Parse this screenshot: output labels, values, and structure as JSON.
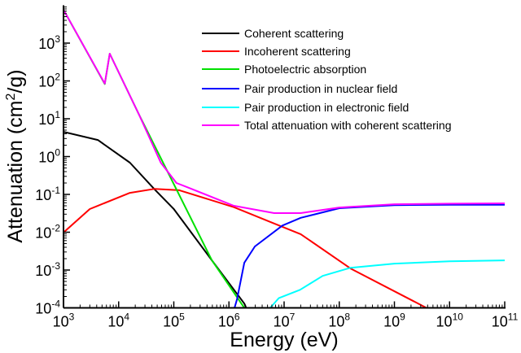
{
  "chart_data": {
    "type": "line",
    "title": "",
    "xlabel": "Energy (eV)",
    "ylabel": "Attenuation (cm2/g)",
    "ylabel_parts": {
      "pre": "Attenuation (cm",
      "sup": "2",
      "post": "/g)"
    },
    "x_scale": "log",
    "y_scale": "log",
    "xlim": [
      1000.0,
      100000000000.0
    ],
    "ylim": [
      0.0001,
      10000.0
    ],
    "x_ticks": [
      {
        "base": "10",
        "exp": "3",
        "value": 1000.0
      },
      {
        "base": "10",
        "exp": "4",
        "value": 10000.0
      },
      {
        "base": "10",
        "exp": "5",
        "value": 100000.0
      },
      {
        "base": "10",
        "exp": "6",
        "value": 1000000.0
      },
      {
        "base": "10",
        "exp": "7",
        "value": 10000000.0
      },
      {
        "base": "10",
        "exp": "8",
        "value": 100000000.0
      },
      {
        "base": "10",
        "exp": "9",
        "value": 1000000000.0
      },
      {
        "base": "10",
        "exp": "10",
        "value": 10000000000.0
      },
      {
        "base": "10",
        "exp": "11",
        "value": 100000000000.0
      }
    ],
    "y_ticks": [
      {
        "base": "10",
        "exp": "-4",
        "value": 0.0001
      },
      {
        "base": "10",
        "exp": "-3",
        "value": 0.001
      },
      {
        "base": "10",
        "exp": "-2",
        "value": 0.01
      },
      {
        "base": "10",
        "exp": "-1",
        "value": 0.1
      },
      {
        "base": "10",
        "exp": "0",
        "value": 1
      },
      {
        "base": "10",
        "exp": "1",
        "value": 10
      },
      {
        "base": "10",
        "exp": "2",
        "value": 100
      },
      {
        "base": "10",
        "exp": "3",
        "value": 1000
      }
    ],
    "grid": false,
    "legend_placement": "top-right",
    "series": [
      {
        "name": "Coherent scattering",
        "color": "#000000",
        "x": [
          1000.0,
          4200.0,
          16000.0,
          45000.0,
          100000.0,
          490000.0,
          1900000.0,
          2050000.0
        ],
        "y": [
          4.5,
          2.75,
          0.69,
          0.135,
          0.041,
          0.0018,
          0.00013,
          0.0001
        ]
      },
      {
        "name": "Incoherent scattering",
        "color": "#ff0000",
        "x": [
          1000.0,
          3000.0,
          16000.0,
          45000.0,
          126000.0,
          1230000.0,
          6600000.0,
          20000000.0,
          160000000.0,
          3800000000.0
        ],
        "y": [
          0.0098,
          0.041,
          0.11,
          0.14,
          0.129,
          0.046,
          0.017,
          0.0089,
          0.0011,
          0.0001
        ]
      },
      {
        "name": "Photoelectric absorption",
        "color": "#00e000",
        "x": [
          1000.0,
          5600.0,
          5600.0,
          6900.0,
          23000.0,
          112000.0,
          490000.0,
          1900000.0
        ],
        "y": [
          7600,
          83,
          83,
          525,
          13.5,
          0.135,
          0.0018,
          0.0001
        ]
      },
      {
        "name": "Pair production in nuclear field",
        "color": "#0000ff",
        "x": [
          1260000.0,
          1400000.0,
          1900000.0,
          2950000.0,
          9300000.0,
          20000000.0,
          100000000.0,
          1000000000.0,
          10000000000.0,
          100000000000.0
        ],
        "y": [
          0.0001,
          0.00017,
          0.00155,
          0.0042,
          0.015,
          0.024,
          0.043,
          0.052,
          0.053,
          0.053
        ]
      },
      {
        "name": "Pair production in electronic field",
        "color": "#00ffff",
        "x": [
          5600000.0,
          8000000.0,
          19500000.0,
          50000000.0,
          160000000.0,
          1000000000.0,
          10000000000.0,
          100000000000.0
        ],
        "y": [
          0.0001,
          0.00018,
          0.0003,
          0.0007,
          0.00115,
          0.00148,
          0.0017,
          0.0018
        ]
      },
      {
        "name": "Total attenuation with coherent scattering",
        "color": "#ff00ff",
        "x": [
          1000.0,
          5600.0,
          6900.0,
          23000.0,
          58000.0,
          112000.0,
          174000.0,
          1230000.0,
          6600000.0,
          20000000.0,
          100000000.0,
          1000000000.0,
          10000000000.0,
          100000000000.0
        ],
        "y": [
          7600,
          85,
          525,
          13.5,
          0.69,
          0.2,
          0.155,
          0.05,
          0.032,
          0.032,
          0.045,
          0.055,
          0.057,
          0.058
        ]
      }
    ]
  }
}
